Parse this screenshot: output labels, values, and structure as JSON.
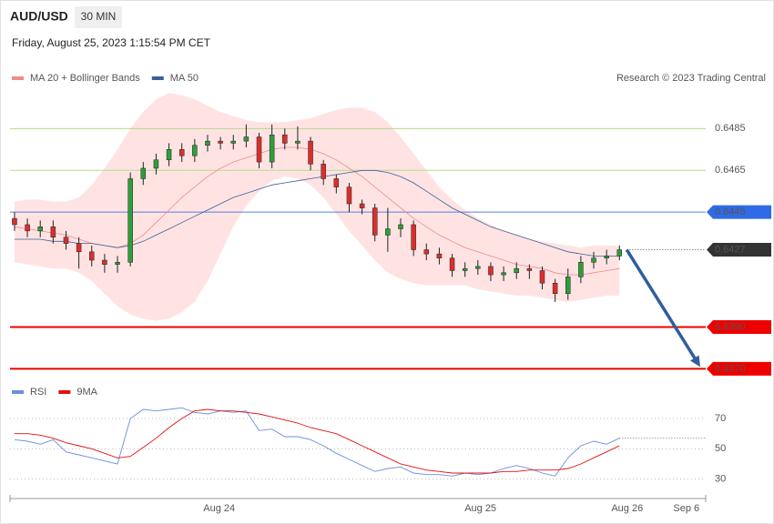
{
  "chart_data": [
    {
      "type": "candlestick",
      "title": "AUD/USD",
      "timeframe": "30 MIN",
      "subtitle": "Friday, August 25, 2023 1:15:54 PM CET",
      "source": "Research © 2023 Trading Central",
      "up_color": "#2e9e3a",
      "down_color": "#d9302c",
      "open": [
        0.6442,
        0.6439,
        0.6436,
        0.6438,
        0.6433,
        0.643,
        0.6426,
        0.6422,
        0.642,
        0.6421,
        0.6461,
        0.6466,
        0.647,
        0.6475,
        0.6472,
        0.6477,
        0.6479,
        0.6478,
        0.6479,
        0.6481,
        0.6469,
        0.6482,
        0.6478,
        0.6479,
        0.6468,
        0.6461,
        0.6457,
        0.6449,
        0.6447,
        0.6434,
        0.6437,
        0.6439,
        0.6427,
        0.6425,
        0.6423,
        0.6417,
        0.6418,
        0.6419,
        0.6415,
        0.6416,
        0.6418,
        0.6417,
        0.6411,
        0.6406,
        0.6414,
        0.6421,
        0.6423,
        0.6424
      ],
      "high": [
        0.6445,
        0.6442,
        0.6441,
        0.6441,
        0.6436,
        0.6433,
        0.6429,
        0.6425,
        0.6424,
        0.6464,
        0.6469,
        0.6473,
        0.6478,
        0.6478,
        0.648,
        0.6482,
        0.6481,
        0.6482,
        0.6487,
        0.6483,
        0.6487,
        0.6485,
        0.6486,
        0.6481,
        0.647,
        0.6463,
        0.6459,
        0.6451,
        0.6449,
        0.6447,
        0.6442,
        0.6441,
        0.643,
        0.6428,
        0.6425,
        0.6421,
        0.6422,
        0.6421,
        0.6419,
        0.6421,
        0.642,
        0.6419,
        0.6413,
        0.6418,
        0.6424,
        0.6426,
        0.6427,
        0.6429
      ],
      "low": [
        0.6436,
        0.6433,
        0.6433,
        0.643,
        0.6427,
        0.6418,
        0.6419,
        0.6416,
        0.6416,
        0.6419,
        0.6458,
        0.6463,
        0.6467,
        0.6469,
        0.6469,
        0.6474,
        0.6475,
        0.6475,
        0.6476,
        0.6466,
        0.6466,
        0.6475,
        0.6475,
        0.6465,
        0.6458,
        0.6454,
        0.6445,
        0.6444,
        0.6431,
        0.6426,
        0.6433,
        0.6424,
        0.6422,
        0.642,
        0.6414,
        0.6414,
        0.6415,
        0.6412,
        0.6412,
        0.6413,
        0.6413,
        0.6408,
        0.6402,
        0.6403,
        0.6411,
        0.6418,
        0.642,
        0.6422
      ],
      "close": [
        0.6439,
        0.6436,
        0.6438,
        0.6433,
        0.643,
        0.6426,
        0.6422,
        0.642,
        0.6421,
        0.6461,
        0.6466,
        0.647,
        0.6475,
        0.6472,
        0.6477,
        0.6479,
        0.6478,
        0.6479,
        0.6481,
        0.6469,
        0.6482,
        0.6478,
        0.6479,
        0.6468,
        0.6461,
        0.6457,
        0.6449,
        0.6447,
        0.6434,
        0.6437,
        0.6439,
        0.6427,
        0.6425,
        0.6423,
        0.6417,
        0.6418,
        0.6419,
        0.6415,
        0.6416,
        0.6418,
        0.6417,
        0.6411,
        0.6406,
        0.6414,
        0.6421,
        0.6423,
        0.6424,
        0.6427
      ],
      "series": [
        {
          "name": "MA 20 + Bollinger Bands",
          "color": "#f08a8a",
          "band_color": "#ffe3e3",
          "values": [
            0.6438,
            0.6437,
            0.6436,
            0.6435,
            0.6434,
            0.6432,
            0.643,
            0.6429,
            0.6428,
            0.643,
            0.6434,
            0.644,
            0.6446,
            0.6452,
            0.6457,
            0.6462,
            0.6466,
            0.6469,
            0.6471,
            0.6473,
            0.6475,
            0.6476,
            0.6476,
            0.6475,
            0.6473,
            0.647,
            0.6466,
            0.6462,
            0.6457,
            0.6452,
            0.6447,
            0.6442,
            0.6438,
            0.6434,
            0.6431,
            0.6428,
            0.6426,
            0.6424,
            0.6422,
            0.642,
            0.6419,
            0.6418,
            0.6416,
            0.6415,
            0.6415,
            0.6416,
            0.6417,
            0.6418
          ],
          "upper": [
            0.645,
            0.6451,
            0.6451,
            0.645,
            0.645,
            0.6452,
            0.6458,
            0.6466,
            0.6475,
            0.6485,
            0.6493,
            0.6499,
            0.6502,
            0.6501,
            0.6499,
            0.6496,
            0.6493,
            0.6491,
            0.6489,
            0.6488,
            0.6488,
            0.6488,
            0.6489,
            0.649,
            0.6492,
            0.6494,
            0.6495,
            0.6495,
            0.6493,
            0.6488,
            0.6481,
            0.6473,
            0.6465,
            0.6457,
            0.6451,
            0.6446,
            0.6442,
            0.6439,
            0.6436,
            0.6434,
            0.6432,
            0.6431,
            0.643,
            0.6429,
            0.6428,
            0.6429,
            0.6429,
            0.6429
          ],
          "lower": [
            0.6421,
            0.642,
            0.6419,
            0.6418,
            0.6418,
            0.6416,
            0.6412,
            0.6406,
            0.64,
            0.6396,
            0.6394,
            0.6393,
            0.6394,
            0.6397,
            0.6402,
            0.6412,
            0.6425,
            0.6438,
            0.6448,
            0.6455,
            0.646,
            0.6462,
            0.6461,
            0.6458,
            0.6452,
            0.6444,
            0.6436,
            0.6429,
            0.6422,
            0.6416,
            0.6413,
            0.6411,
            0.641,
            0.641,
            0.641,
            0.641,
            0.6408,
            0.6407,
            0.6406,
            0.6405,
            0.6405,
            0.6404,
            0.6403,
            0.6402,
            0.6403,
            0.6404,
            0.6405,
            0.6405
          ]
        },
        {
          "name": "MA 50",
          "color": "#3a5f9a",
          "values": [
            0.6432,
            0.6432,
            0.6432,
            0.6431,
            0.6431,
            0.643,
            0.643,
            0.6429,
            0.6428,
            0.6429,
            0.6431,
            0.6434,
            0.6437,
            0.644,
            0.6443,
            0.6446,
            0.6449,
            0.6452,
            0.6454,
            0.6456,
            0.6458,
            0.6459,
            0.646,
            0.6461,
            0.6462,
            0.6463,
            0.6464,
            0.6465,
            0.6465,
            0.6464,
            0.6462,
            0.6459,
            0.6455,
            0.6451,
            0.6447,
            0.6444,
            0.6441,
            0.6438,
            0.6436,
            0.6434,
            0.6432,
            0.643,
            0.6428,
            0.6426,
            0.6425,
            0.6424,
            0.6424,
            0.6424
          ]
        }
      ],
      "xlim": [
        -0.35,
        53.7
      ],
      "ylim": [
        0.6368,
        0.6503
      ],
      "levels": [
        {
          "value": 0.6485,
          "label": "0.6485",
          "color": "#6aaa2a",
          "line_color": "#b5d98f",
          "badge": false
        },
        {
          "value": 0.6465,
          "label": "0.6465",
          "color": "#6aaa2a",
          "line_color": "#b5d98f",
          "badge": false
        },
        {
          "value": 0.6445,
          "label": "0.6445",
          "color": "#2f6be6",
          "line_color": "#5580e0",
          "badge": true
        },
        {
          "value": 0.6427,
          "label": "0.6427",
          "color": "#333333",
          "line_color": "#555555",
          "badge": true,
          "dotted": true
        },
        {
          "value": 0.639,
          "label": "0.6390",
          "color": "#ee0000",
          "line_color": "#ee0000",
          "badge": true
        },
        {
          "value": 0.637,
          "label": "0.6370",
          "color": "#ee0000",
          "line_color": "#ee0000",
          "badge": true
        }
      ]
    },
    {
      "type": "line",
      "series": [
        {
          "name": "RSI",
          "color": "#6a8ee0",
          "values": [
            56,
            55,
            53,
            56,
            48,
            46,
            44,
            42,
            40,
            70,
            76,
            75,
            76,
            77,
            74,
            73,
            75,
            74,
            75,
            62,
            63,
            58,
            58,
            56,
            52,
            47,
            43,
            39,
            35,
            37,
            38,
            34,
            33,
            33,
            32,
            34,
            33,
            34,
            37,
            39,
            37,
            34,
            32,
            44,
            52,
            55,
            53,
            57
          ]
        },
        {
          "name": "9MA",
          "color": "#e01010",
          "values": [
            60,
            60,
            59,
            57,
            54,
            52,
            50,
            47,
            44,
            45,
            51,
            57,
            64,
            70,
            75,
            76,
            75,
            75,
            74,
            73,
            71,
            69,
            67,
            64,
            62,
            60,
            56,
            52,
            48,
            44,
            40,
            38,
            36,
            35,
            34,
            34,
            34,
            34,
            35,
            35,
            36,
            36,
            36,
            37,
            40,
            44,
            48,
            52
          ]
        }
      ],
      "xlim": [
        -0.35,
        53.7
      ],
      "ylim": [
        19,
        79
      ],
      "yticks": [
        70,
        50,
        30
      ],
      "grid": true,
      "xticks": [
        {
          "value": 15.9,
          "label": "Aug 24"
        },
        {
          "value": 36.2,
          "label": "Aug 25"
        },
        {
          "value": 47.6,
          "label": "Aug 26"
        },
        {
          "value": 52.2,
          "label": "Sep 6"
        }
      ]
    }
  ]
}
